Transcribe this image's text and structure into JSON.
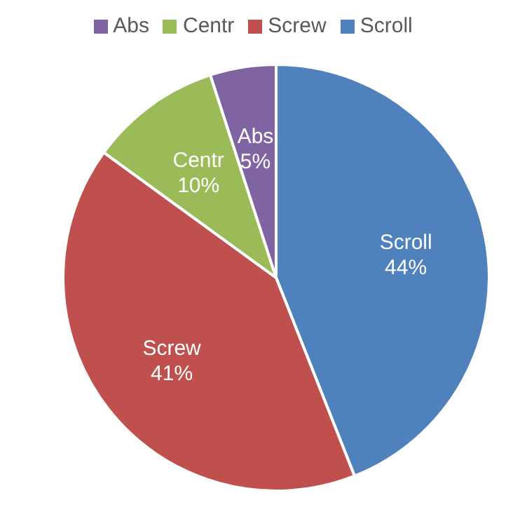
{
  "chart_data": {
    "type": "pie",
    "categories": [
      "Scroll",
      "Screw",
      "Centr",
      "Abs"
    ],
    "values": [
      44,
      41,
      10,
      5
    ],
    "value_labels": [
      "44%",
      "41%",
      "10%",
      "5%"
    ],
    "colors": [
      "#4f81bd",
      "#c0504d",
      "#9bbb59",
      "#8064a2"
    ],
    "legend": "top"
  }
}
